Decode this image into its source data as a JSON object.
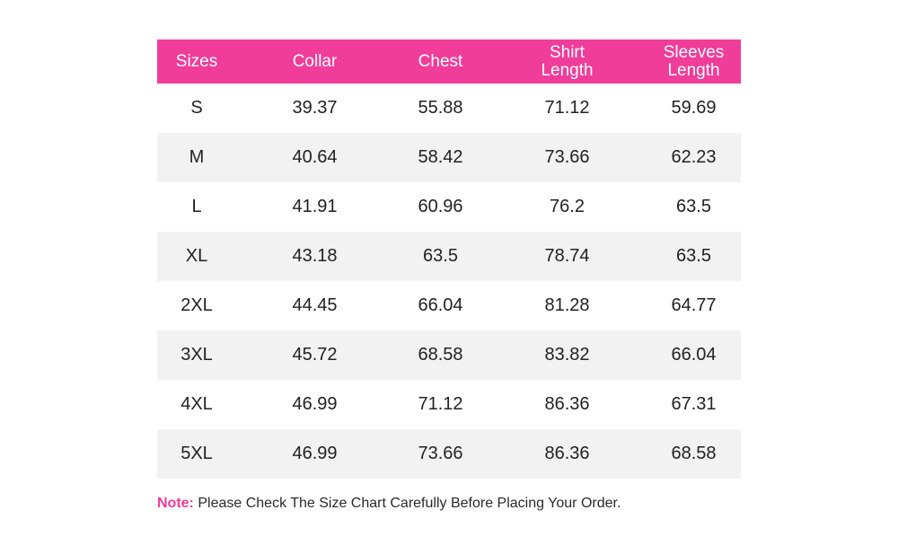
{
  "colors": {
    "header_background": "#f03d9a",
    "header_text": "#ffffff",
    "stripe_row": "#f2f2f2",
    "note_label": "#f03d9a"
  },
  "table": {
    "headers": [
      "Sizes",
      "Collar",
      "Chest",
      "Shirt Length",
      "Sleeves Length"
    ],
    "rows": [
      [
        "S",
        "39.37",
        "55.88",
        "71.12",
        "59.69"
      ],
      [
        "M",
        "40.64",
        "58.42",
        "73.66",
        "62.23"
      ],
      [
        "L",
        "41.91",
        "60.96",
        "76.2",
        "63.5"
      ],
      [
        "XL",
        "43.18",
        "63.5",
        "78.74",
        "63.5"
      ],
      [
        "2XL",
        "44.45",
        "66.04",
        "81.28",
        "64.77"
      ],
      [
        "3XL",
        "45.72",
        "68.58",
        "83.82",
        "66.04"
      ],
      [
        "4XL",
        "46.99",
        "71.12",
        "86.36",
        "67.31"
      ],
      [
        "5XL",
        "46.99",
        "73.66",
        "86.36",
        "68.58"
      ]
    ]
  },
  "note": {
    "label": "Note:",
    "text": "Please Check The Size Chart Carefully Before Placing Your Order."
  }
}
